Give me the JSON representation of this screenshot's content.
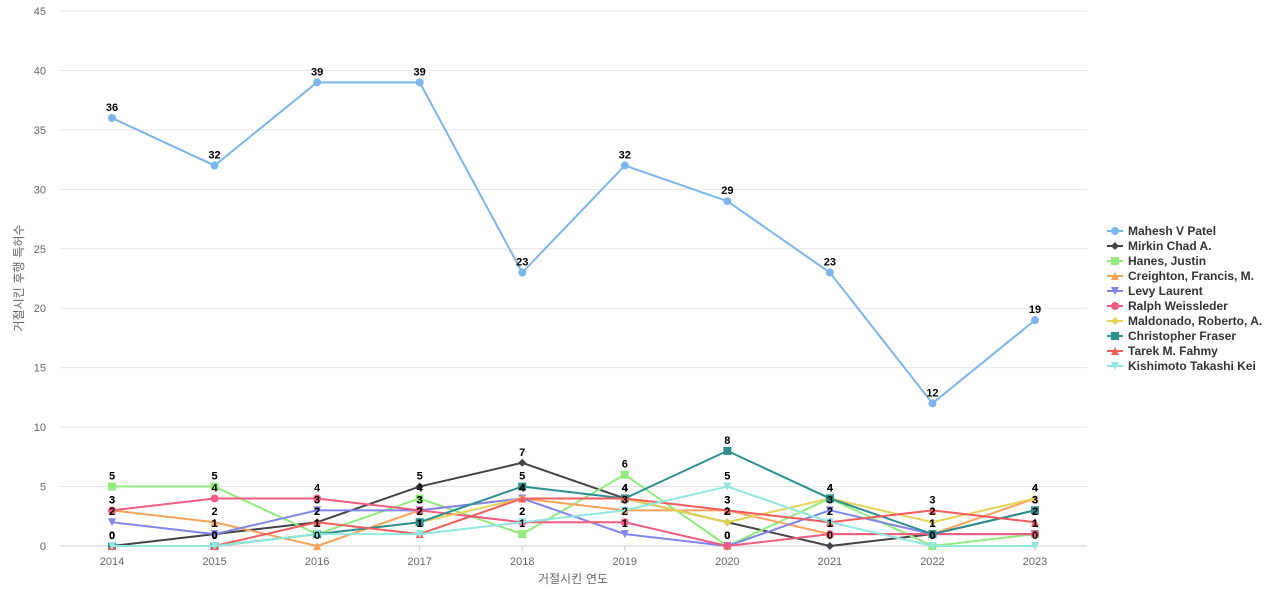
{
  "chart_data": {
    "type": "line",
    "xlabel": "거절시킨 연도",
    "ylabel": "거절시킨 후행 특허수",
    "x": [
      2014,
      2015,
      2016,
      2017,
      2018,
      2019,
      2020,
      2021,
      2022,
      2023
    ],
    "ylim": [
      0,
      45
    ],
    "yticks": [
      0,
      5,
      10,
      15,
      20,
      25,
      30,
      35,
      40,
      45
    ],
    "grid": true,
    "legend_position": "right",
    "data_labels": true,
    "series": [
      {
        "name": "Mahesh V Patel",
        "color": "#7cb5ec",
        "marker": "circle",
        "values": [
          36,
          32,
          39,
          39,
          23,
          32,
          29,
          23,
          12,
          19
        ]
      },
      {
        "name": "Mirkin Chad A.",
        "color": "#434348",
        "marker": "diamond",
        "values": [
          0,
          1,
          2,
          5,
          7,
          4,
          2,
          0,
          1,
          3
        ]
      },
      {
        "name": "Hanes, Justin",
        "color": "#90ed7d",
        "marker": "square",
        "values": [
          5,
          5,
          1,
          4,
          1,
          6,
          0,
          4,
          0,
          1
        ]
      },
      {
        "name": "Creighton, Francis, M.",
        "color": "#f7a35c",
        "marker": "triangle",
        "values": [
          3,
          2,
          0,
          3,
          4,
          3,
          3,
          1,
          1,
          4
        ]
      },
      {
        "name": "Levy Laurent",
        "color": "#8085e9",
        "marker": "triangle-down",
        "values": [
          2,
          1,
          3,
          3,
          4,
          1,
          0,
          3,
          1,
          1
        ]
      },
      {
        "name": "Ralph Weissleder",
        "color": "#f15c80",
        "marker": "circle",
        "values": [
          3,
          4,
          4,
          3,
          2,
          2,
          0,
          1,
          1,
          1
        ]
      },
      {
        "name": "Maldonado, Roberto, A.",
        "color": "#e4d354",
        "marker": "diamond",
        "values": [
          0,
          0,
          1,
          2,
          4,
          4,
          2,
          4,
          2,
          4
        ]
      },
      {
        "name": "Christopher Fraser",
        "color": "#2b908f",
        "marker": "square",
        "values": [
          0,
          0,
          1,
          2,
          5,
          4,
          8,
          4,
          1,
          3
        ]
      },
      {
        "name": "Tarek M. Fahmy",
        "color": "#f45b5b",
        "marker": "triangle",
        "values": [
          0,
          0,
          2,
          1,
          4,
          4,
          3,
          2,
          3,
          2
        ]
      },
      {
        "name": "Kishimoto Takashi Kei",
        "color": "#91e8e1",
        "marker": "triangle-down",
        "values": [
          0,
          0,
          1,
          1,
          2,
          3,
          5,
          2,
          0,
          0
        ]
      }
    ]
  }
}
